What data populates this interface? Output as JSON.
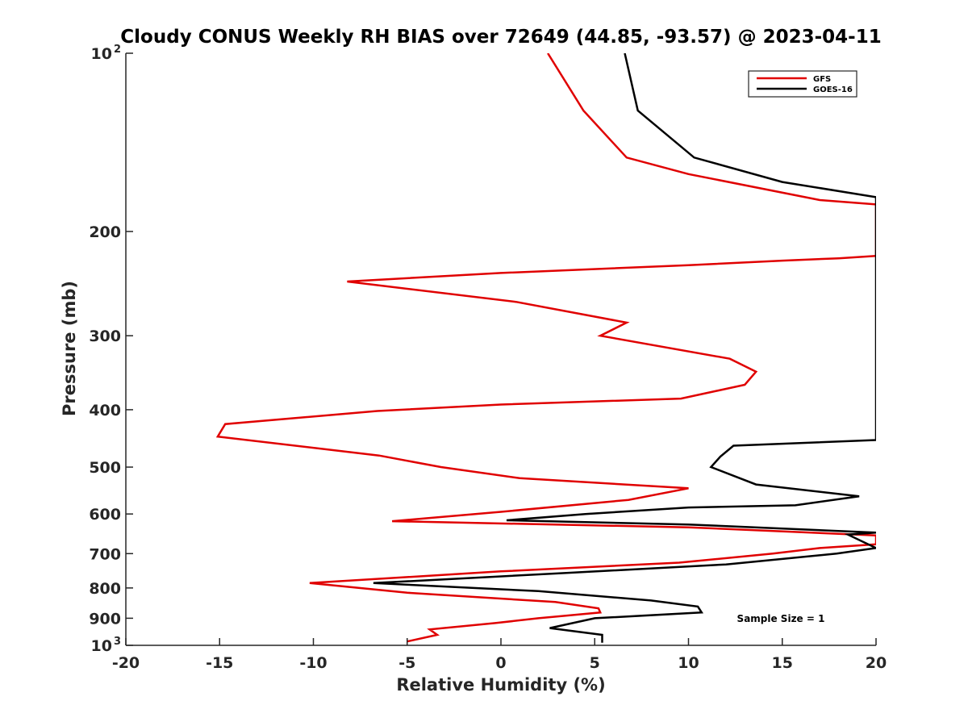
{
  "chart_data": {
    "type": "line",
    "title": "Cloudy CONUS Weekly RH BIAS over 72649 (44.85, -93.57) @ 2023-04-11",
    "xlabel": "Relative Humidity (%)",
    "ylabel": "Pressure (mb)",
    "xlim": [
      -20,
      20
    ],
    "ylim": [
      100,
      1000
    ],
    "y_scale": "log",
    "y_reversed": true,
    "x_ticks": [
      "-20",
      "-15",
      "-10",
      "-5",
      "0",
      "5",
      "10",
      "15",
      "20"
    ],
    "y_ticks": [
      {
        "value": 100,
        "label": "10",
        "exp": "2"
      },
      {
        "value": 200,
        "label": "200",
        "exp": ""
      },
      {
        "value": 300,
        "label": "300",
        "exp": ""
      },
      {
        "value": 400,
        "label": "400",
        "exp": ""
      },
      {
        "value": 500,
        "label": "500",
        "exp": ""
      },
      {
        "value": 600,
        "label": "600",
        "exp": ""
      },
      {
        "value": 700,
        "label": "700",
        "exp": ""
      },
      {
        "value": 800,
        "label": "800",
        "exp": ""
      },
      {
        "value": 900,
        "label": "900",
        "exp": ""
      },
      {
        "value": 1000,
        "label": "10",
        "exp": "3"
      }
    ],
    "grid": false,
    "legend_position": "top-right",
    "annotation": "Sample Size = 1",
    "series": [
      {
        "name": "GFS",
        "color": "#e00000",
        "points": [
          [
            2.5,
            100
          ],
          [
            4.4,
            125
          ],
          [
            6.7,
            150
          ],
          [
            10,
            160
          ],
          [
            17,
            177
          ],
          [
            20,
            180
          ],
          [
            20,
            220
          ],
          [
            18,
            222
          ],
          [
            15,
            224
          ],
          [
            10,
            228
          ],
          [
            0,
            235
          ],
          [
            -8.2,
            243
          ],
          [
            0.8,
            263
          ],
          [
            6.7,
            285
          ],
          [
            5.3,
            300
          ],
          [
            12.2,
            328
          ],
          [
            13.6,
            345
          ],
          [
            13,
            363
          ],
          [
            9.6,
            383
          ],
          [
            0,
            392
          ],
          [
            -6.6,
            402
          ],
          [
            -14.7,
            423
          ],
          [
            -15.1,
            444
          ],
          [
            -6.5,
            478
          ],
          [
            -3.2,
            500
          ],
          [
            1,
            522
          ],
          [
            10,
            543
          ],
          [
            6.8,
            568
          ],
          [
            0,
            595
          ],
          [
            -5.8,
            617
          ],
          [
            10,
            632
          ],
          [
            20,
            652
          ],
          [
            20,
            675
          ],
          [
            17,
            685
          ],
          [
            14.5,
            700
          ],
          [
            9.5,
            725
          ],
          [
            0,
            750
          ],
          [
            -10.2,
            785
          ],
          [
            -5,
            815
          ],
          [
            2.9,
            845
          ],
          [
            5.2,
            866
          ],
          [
            5.3,
            880
          ],
          [
            2,
            900
          ],
          [
            -0.3,
            917
          ],
          [
            -3.8,
            940
          ],
          [
            -3.4,
            960
          ],
          [
            -5,
            985
          ]
        ]
      },
      {
        "name": "GOES-16",
        "color": "#000000",
        "points": [
          [
            6.6,
            100
          ],
          [
            7.3,
            125
          ],
          [
            10.3,
            150
          ],
          [
            15,
            165
          ],
          [
            20,
            175
          ],
          [
            20,
            450
          ],
          [
            12.4,
            460
          ],
          [
            11.7,
            480
          ],
          [
            11.2,
            500
          ],
          [
            13.6,
            535
          ],
          [
            19.1,
            560
          ],
          [
            15.7,
            580
          ],
          [
            10,
            585
          ],
          [
            4.5,
            600
          ],
          [
            0.3,
            615
          ],
          [
            10,
            625
          ],
          [
            20,
            645
          ],
          [
            18.5,
            650
          ],
          [
            20,
            685
          ],
          [
            17.9,
            700
          ],
          [
            12,
            730
          ],
          [
            3.4,
            755
          ],
          [
            -6.8,
            785
          ],
          [
            2,
            810
          ],
          [
            8,
            840
          ],
          [
            10.5,
            860
          ],
          [
            10.7,
            880
          ],
          [
            5,
            900
          ],
          [
            2.6,
            935
          ],
          [
            5.4,
            960
          ],
          [
            5.4,
            990
          ]
        ]
      }
    ]
  }
}
